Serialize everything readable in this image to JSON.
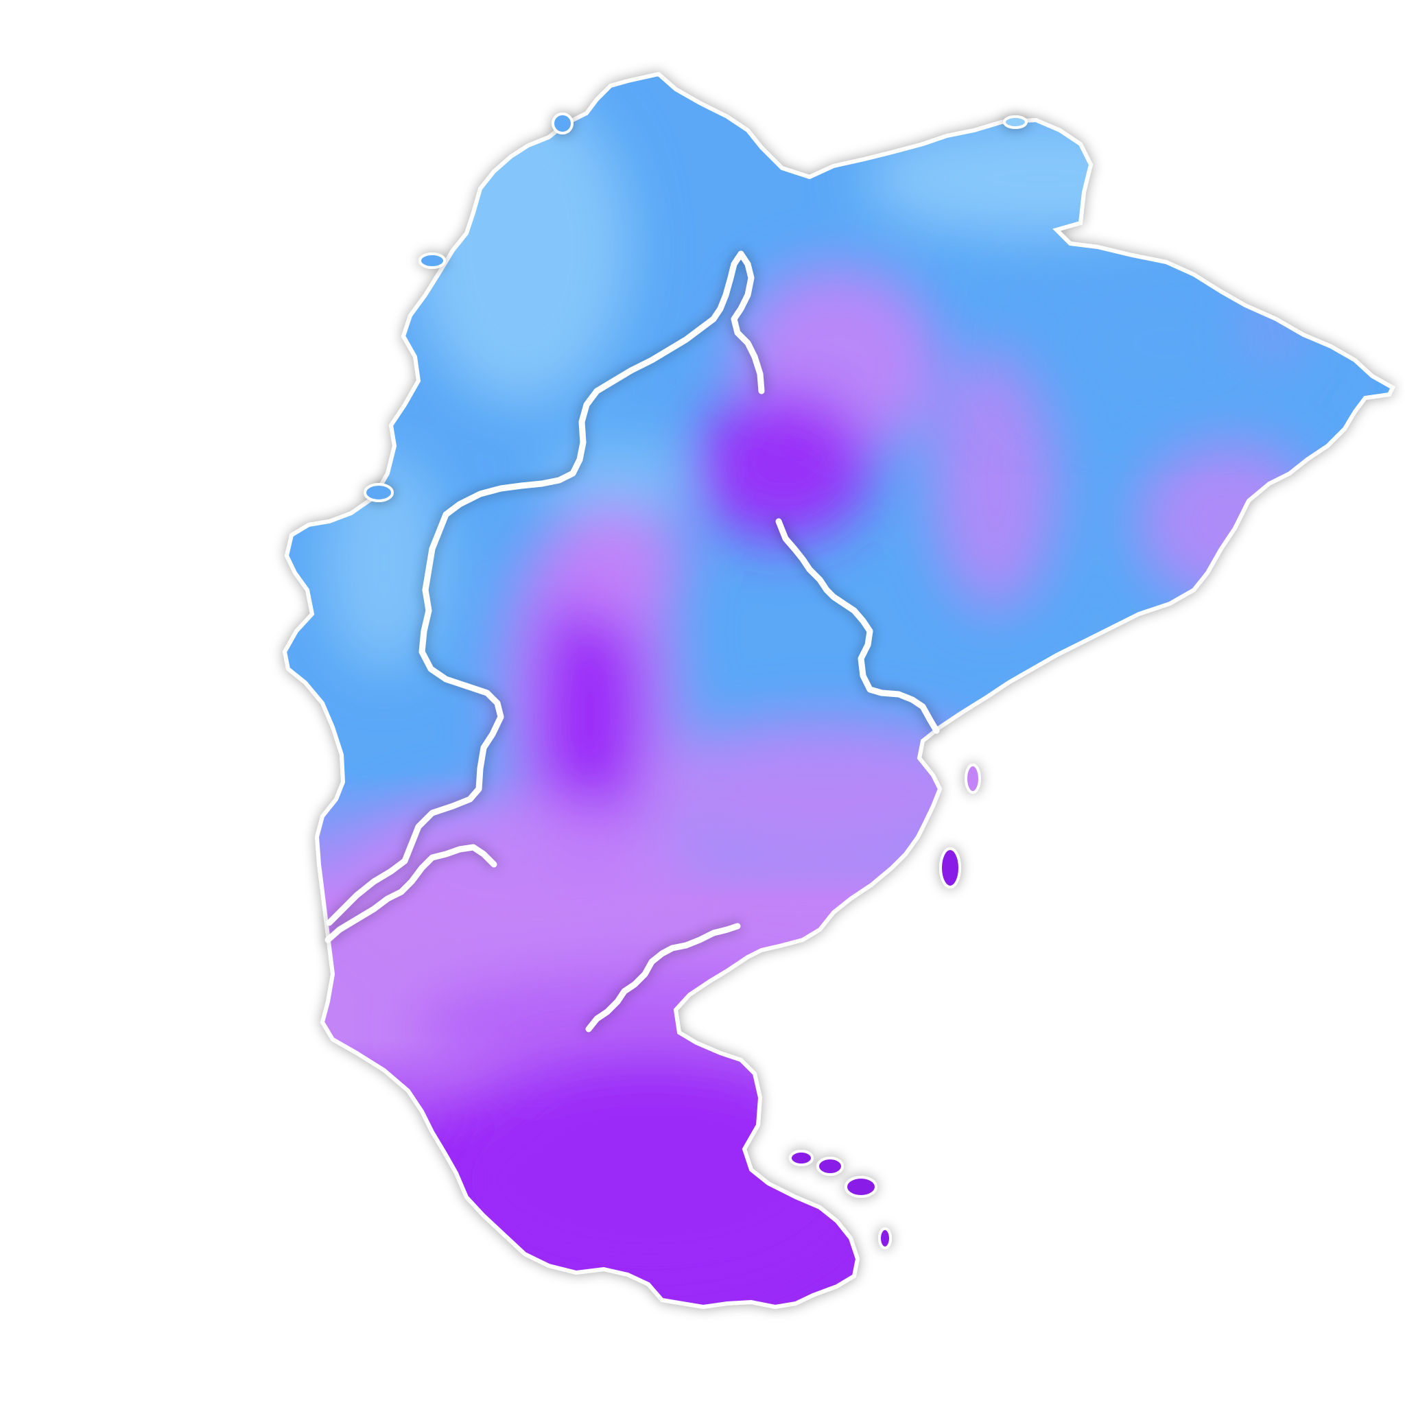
{
  "map": {
    "kind": "choropleth-heat-map",
    "labels_shown": false,
    "legend_shown": false,
    "background_color": "#ffffff",
    "border_color": "#ffffff",
    "palette": {
      "light_blue": "#8FCDFB",
      "blue": "#5BA8F7",
      "lavender": "#C384F8",
      "purple": "#9B2BF8",
      "deep_purple": "#8A1EE8"
    },
    "regions": [
      {
        "id": "north-region",
        "fill": "#5BA8F7"
      },
      {
        "id": "west-region",
        "fill": "#5BA8F7"
      },
      {
        "id": "central-region",
        "fill": "#5BA8F7"
      },
      {
        "id": "south-region",
        "fill": "#9B2BF8"
      },
      {
        "id": "enclave-region",
        "fill": "#5BA8F7"
      }
    ]
  }
}
